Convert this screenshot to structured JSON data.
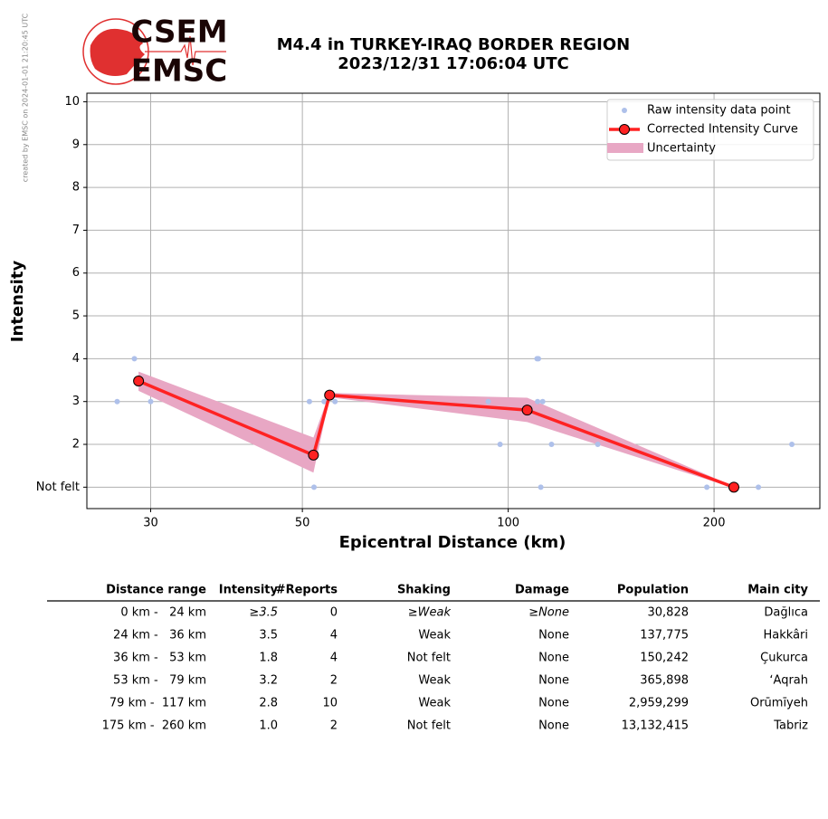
{
  "chart_data": {
    "type": "line",
    "title": [
      "M4.4 in TURKEY-IRAQ BORDER REGION",
      "2023/12/31 17:06:04 UTC"
    ],
    "credit": "created by EMSC on 2024-01-01 21:20:45 UTC",
    "logo": [
      "CSEM",
      "EMSC"
    ],
    "xlabel": "Epicentral Distance (km)",
    "ylabel": "Intensity",
    "xscale": "log",
    "grid": true,
    "legend": "upper right",
    "xlim": [
      24.2,
      285.6
    ],
    "xticks": [
      30,
      50,
      100,
      200
    ],
    "ylim": [
      0.5,
      10.2
    ],
    "yticks": [
      {
        "value": 1,
        "label": "Not felt"
      },
      2,
      3,
      4,
      5,
      6,
      7,
      8,
      9,
      10
    ],
    "series": [
      {
        "name": "Raw intensity data point",
        "color": "#aec0ea",
        "x": [
          26.8,
          28.4,
          30,
          51.2,
          52.0,
          53.8,
          55.8,
          93.5,
          97.3,
          110.2,
          110.7,
          110.4,
          112.3,
          111.6,
          115.7,
          135.2,
          195.2,
          232.2,
          259.9
        ],
        "values": [
          3,
          4,
          3,
          3,
          1,
          3,
          3,
          3,
          2,
          4,
          4,
          3,
          3,
          1,
          2,
          2,
          1,
          1,
          2
        ]
      },
      {
        "name": "Corrected Intensity Curve",
        "color": "#ff2222",
        "x": [
          28.8,
          51.9,
          54.8,
          106.6,
          213.8
        ],
        "values": [
          3.48,
          1.75,
          3.15,
          2.8,
          1.0
        ]
      }
    ],
    "uncertainty": {
      "name": "Uncertainty",
      "color": "#e8a7c4",
      "x": [
        28.8,
        51.9,
        54.8,
        106.6,
        213.8
      ],
      "upper": [
        3.7,
        2.16,
        3.2,
        3.09,
        1.02
      ],
      "lower": [
        3.25,
        1.34,
        3.1,
        2.52,
        0.98
      ]
    }
  },
  "table": {
    "columns": [
      "Distance range",
      "Intensity",
      "#Reports",
      "Shaking",
      "Damage",
      "Population",
      "Main city"
    ],
    "rows": [
      [
        "0 km -   24 km",
        "≥3.5",
        "0",
        "≥Weak",
        "≥None",
        "30,828",
        "Dağlıca"
      ],
      [
        "24 km -   36 km",
        "3.5",
        "4",
        "Weak",
        "None",
        "137,775",
        "Hakkâri"
      ],
      [
        "36 km -   53 km",
        "1.8",
        "4",
        "Not felt",
        "None",
        "150,242",
        "Çukurca"
      ],
      [
        "53 km -   79 km",
        "3.2",
        "2",
        "Weak",
        "None",
        "365,898",
        "ʻAqrah"
      ],
      [
        "79 km -  117 km",
        "2.8",
        "10",
        "Weak",
        "None",
        "2,959,299",
        "Orūmīyeh"
      ],
      [
        "175 km -  260 km",
        "1.0",
        "2",
        "Not felt",
        "None",
        "13,132,415",
        "Tabriz"
      ]
    ]
  }
}
